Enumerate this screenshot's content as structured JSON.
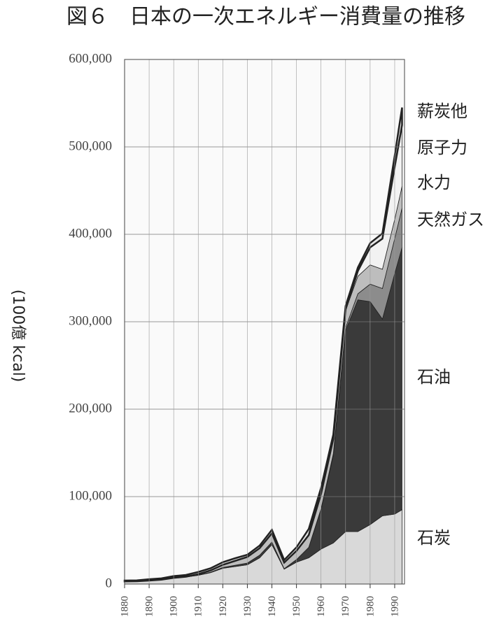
{
  "chart_data": {
    "type": "stacked-area",
    "title": "図６　日本の一次エネルギー消費量の推移",
    "y_label": "(100億 kcal)",
    "x": [
      1880,
      1885,
      1890,
      1895,
      1900,
      1905,
      1910,
      1915,
      1920,
      1925,
      1930,
      1935,
      1940,
      1945,
      1950,
      1955,
      1960,
      1965,
      1970,
      1975,
      1980,
      1985,
      1990,
      1993
    ],
    "series": [
      {
        "name": "石炭",
        "color": "#d9d9d9",
        "values": [
          3000,
          3200,
          4000,
          5000,
          7000,
          8000,
          10000,
          13000,
          18000,
          20000,
          22000,
          30000,
          45000,
          17000,
          25000,
          30000,
          40000,
          47000,
          60000,
          60000,
          68000,
          78000,
          80000,
          85000
        ]
      },
      {
        "name": "石油",
        "color": "#3a3a3a",
        "values": [
          0,
          0,
          0,
          0,
          100,
          200,
          300,
          500,
          1000,
          1500,
          2000,
          3000,
          3000,
          500,
          3000,
          12000,
          45000,
          100000,
          230000,
          265000,
          255000,
          225000,
          275000,
          300000
        ]
      },
      {
        "name": "天然ガス",
        "color": "#8c8c8c",
        "values": [
          0,
          0,
          0,
          0,
          0,
          0,
          0,
          0,
          0,
          0,
          0,
          0,
          0,
          0,
          0,
          0,
          1000,
          2000,
          3000,
          7000,
          20000,
          35000,
          40000,
          45000
        ]
      },
      {
        "name": "水力",
        "color": "#bdbdbd",
        "values": [
          0,
          0,
          0,
          0,
          0,
          200,
          1000,
          2000,
          3000,
          5000,
          7000,
          8000,
          10000,
          7000,
          10000,
          14000,
          17000,
          17000,
          20000,
          20000,
          22000,
          22000,
          22000,
          25000
        ]
      },
      {
        "name": "原子力",
        "color": "#f2f2f2",
        "values": [
          0,
          0,
          0,
          0,
          0,
          0,
          0,
          0,
          0,
          0,
          0,
          0,
          0,
          0,
          0,
          0,
          0,
          0,
          1000,
          6000,
          20000,
          35000,
          60000,
          70000
        ]
      },
      {
        "name": "薪炭他",
        "color": "#e6e6e6",
        "values": [
          1000,
          1000,
          1500,
          1500,
          2000,
          2000,
          2500,
          2500,
          3000,
          3000,
          2500,
          3000,
          4000,
          3000,
          4000,
          7000,
          7000,
          5000,
          4000,
          4000,
          5000,
          6000,
          13000,
          20000
        ]
      }
    ],
    "xlim": [
      1880,
      1994
    ],
    "xticks": [
      1880,
      1890,
      1900,
      1910,
      1920,
      1930,
      1940,
      1950,
      1960,
      1970,
      1980,
      1990
    ],
    "ylim": [
      0,
      600000
    ],
    "yticks": [
      0,
      {
        "value": 100000,
        "label": "100,000"
      },
      {
        "value": 200000,
        "label": "200,000"
      },
      {
        "value": 300000,
        "label": "300,000"
      },
      {
        "value": 400000,
        "label": "400,000"
      },
      {
        "value": 500000,
        "label": "500,000"
      },
      {
        "value": 600000,
        "label": "600,000"
      }
    ],
    "grid": true
  }
}
